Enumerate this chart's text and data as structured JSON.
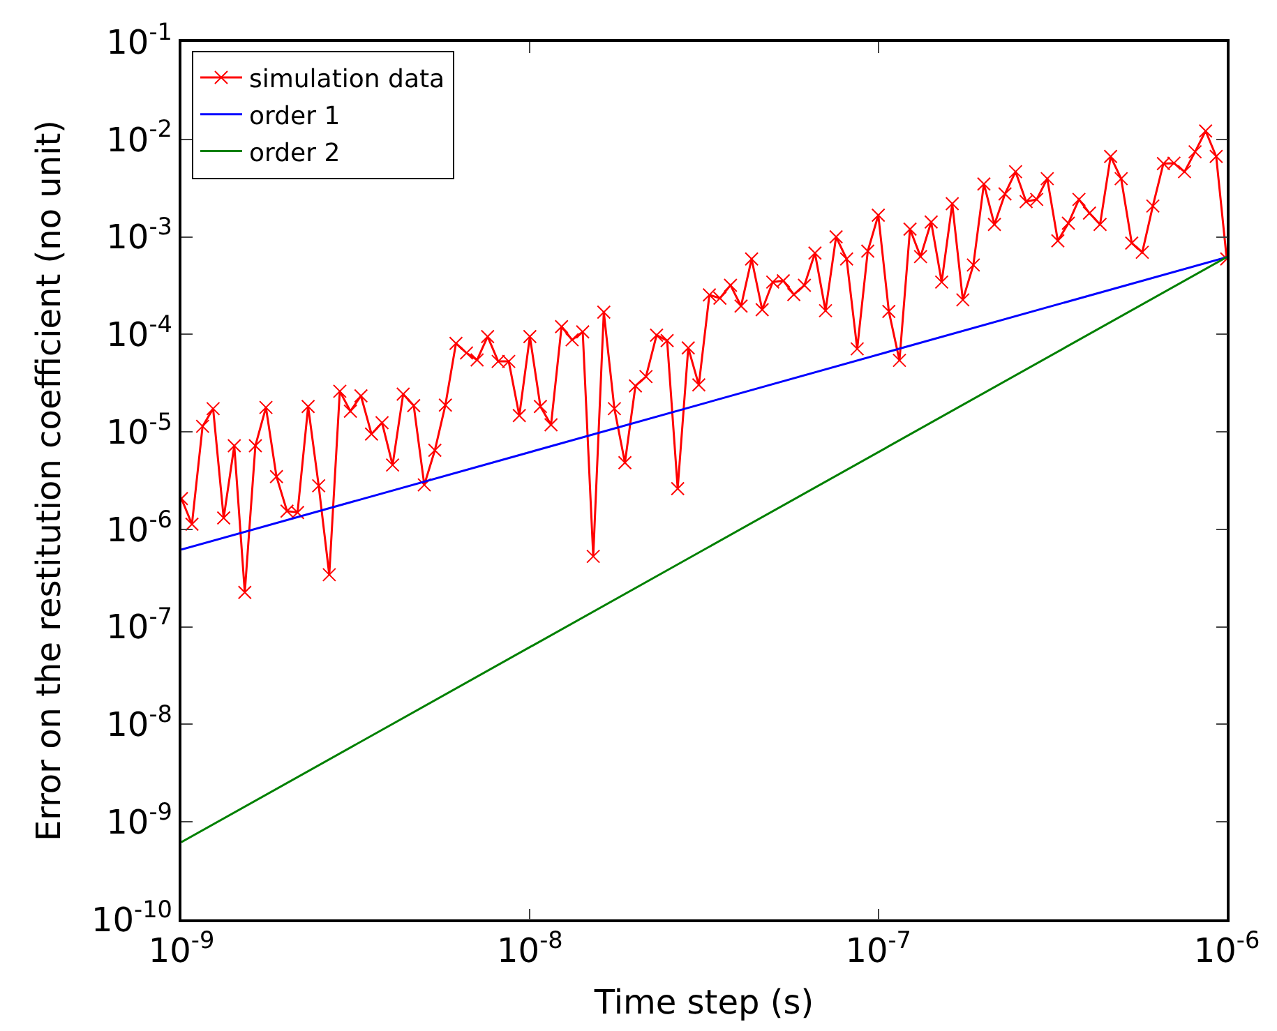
{
  "chart_data": {
    "type": "line",
    "xlabel": "Time step (s)",
    "ylabel": "Error on the restitution coefficient (no unit)",
    "log": "xy",
    "grid": false,
    "legend": "top left",
    "xlim": [
      1e-09,
      1e-06
    ],
    "ylim": [
      1e-10,
      0.1
    ],
    "xticks": [
      {
        "value": 1e-09,
        "label": "10$^{-9}$"
      },
      {
        "value": 1e-08,
        "label": "10$^{-8}$"
      },
      {
        "value": 1e-07,
        "label": "10$^{-7}$"
      },
      {
        "value": 1e-06,
        "label": "10$^{-6}$"
      }
    ],
    "yticks": [
      {
        "value": 1e-10,
        "label": "10$^{-10}$"
      },
      {
        "value": 1e-09,
        "label": "10$^{-9}$"
      },
      {
        "value": 1e-08,
        "label": "10$^{-8}$"
      },
      {
        "value": 1e-07,
        "label": "10$^{-7}$"
      },
      {
        "value": 1e-06,
        "label": "10$^{-6}$"
      },
      {
        "value": 1e-05,
        "label": "10$^{-5}$"
      },
      {
        "value": 0.0001,
        "label": "10$^{-4}$"
      },
      {
        "value": 0.001,
        "label": "10$^{-3}$"
      },
      {
        "value": 0.01,
        "label": "10$^{-2}$"
      },
      {
        "value": 0.1,
        "label": "10$^{-1}$"
      }
    ],
    "series": [
      {
        "name": "simulation data",
        "color": "#ff0000",
        "marker": "cross",
        "x": [
          1e-09,
          1.072e-09,
          1.15e-09,
          1.233e-09,
          1.322e-09,
          1.418e-09,
          1.52e-09,
          1.63e-09,
          1.748e-09,
          1.874e-09,
          2.009e-09,
          2.154e-09,
          2.31e-09,
          2.477e-09,
          2.656e-09,
          2.848e-09,
          3.054e-09,
          3.275e-09,
          3.511e-09,
          3.765e-09,
          4.037e-09,
          4.329e-09,
          4.642e-09,
          4.977e-09,
          5.337e-09,
          5.722e-09,
          6.136e-09,
          6.579e-09,
          7.055e-09,
          7.565e-09,
          8.111e-09,
          8.697e-09,
          9.326e-09,
          1e-08,
          1.072e-08,
          1.15e-08,
          1.233e-08,
          1.322e-08,
          1.418e-08,
          1.52e-08,
          1.63e-08,
          1.748e-08,
          1.874e-08,
          2.009e-08,
          2.154e-08,
          2.31e-08,
          2.477e-08,
          2.656e-08,
          2.848e-08,
          3.054e-08,
          3.275e-08,
          3.511e-08,
          3.765e-08,
          4.037e-08,
          4.329e-08,
          4.642e-08,
          4.977e-08,
          5.337e-08,
          5.722e-08,
          6.136e-08,
          6.579e-08,
          7.055e-08,
          7.565e-08,
          8.111e-08,
          8.697e-08,
          9.326e-08,
          1e-07,
          1.072e-07,
          1.15e-07,
          1.233e-07,
          1.322e-07,
          1.418e-07,
          1.52e-07,
          1.63e-07,
          1.748e-07,
          1.874e-07,
          2.009e-07,
          2.154e-07,
          2.31e-07,
          2.477e-07,
          2.656e-07,
          2.848e-07,
          3.054e-07,
          3.275e-07,
          3.511e-07,
          3.765e-07,
          4.037e-07,
          4.329e-07,
          4.642e-07,
          4.977e-07,
          5.337e-07,
          5.722e-07,
          6.136e-07,
          6.579e-07,
          7.055e-07,
          7.565e-07,
          8.111e-07,
          8.697e-07,
          9.326e-07,
          1e-06
        ],
        "values": [
          2.07e-06,
          1.13e-06,
          1.14e-05,
          1.73e-05,
          1.31e-06,
          7.2e-06,
          2.26e-07,
          7.2e-06,
          1.78e-05,
          3.48e-06,
          1.54e-06,
          1.49e-06,
          1.82e-05,
          2.8e-06,
          3.43e-07,
          2.61e-05,
          1.63e-05,
          2.34e-05,
          9.5e-06,
          1.24e-05,
          4.57e-06,
          2.44e-05,
          1.86e-05,
          2.86e-06,
          6.47e-06,
          1.88e-05,
          8.09e-05,
          6.44e-05,
          5.47e-05,
          9.5e-05,
          5.28e-05,
          5.28e-05,
          1.47e-05,
          9.5e-05,
          1.82e-05,
          1.18e-05,
          0.00012,
          8.8e-05,
          0.000106,
          5.28e-07,
          0.000169,
          1.73e-05,
          4.83e-06,
          2.96e-05,
          3.69e-05,
          9.8e-05,
          8.63e-05,
          2.62e-06,
          7.26e-05,
          3.03e-05,
          0.000254,
          0.000235,
          0.000319,
          0.000195,
          0.000593,
          0.000179,
          0.000344,
          0.000355,
          0.000256,
          0.000319,
          0.000682,
          0.000175,
          0.001,
          0.000593,
          7.1e-05,
          0.000714,
          0.00167,
          0.000172,
          5.41e-05,
          0.0012,
          0.000627,
          0.00142,
          0.000344,
          0.00219,
          0.000226,
          0.000515,
          0.00349,
          0.00134,
          0.00276,
          0.00466,
          0.0023,
          0.00242,
          0.00395,
          0.00091,
          0.00138,
          0.00242,
          0.00175,
          0.00134,
          0.00668,
          0.00395,
          0.000863,
          0.000695,
          0.00207,
          0.00565,
          0.0057,
          0.00466,
          0.00745,
          0.0122,
          0.00668,
          0.000593
        ]
      },
      {
        "name": "order 1",
        "color": "#0000ff",
        "marker": "none",
        "x": [
          1e-09,
          1e-06
        ],
        "values": [
          6.2e-07,
          0.00062
        ]
      },
      {
        "name": "order 2",
        "color": "#008000",
        "marker": "none",
        "x": [
          1e-09,
          1e-06
        ],
        "values": [
          6.2e-10,
          0.00062
        ]
      }
    ]
  }
}
